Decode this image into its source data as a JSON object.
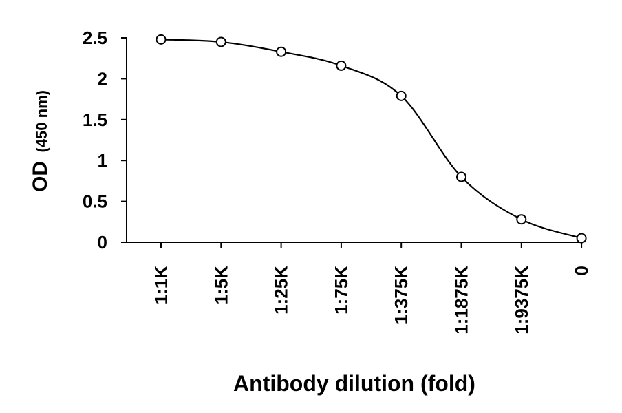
{
  "chart_data": {
    "type": "line",
    "title": "",
    "xlabel": "Antibody dilution (fold)",
    "ylabel_main": "OD",
    "ylabel_unit": "(450 nm)",
    "categories": [
      "1:1K",
      "1:5K",
      "1:25K",
      "1:75K",
      "1:375K",
      "1:1875K",
      "1:9375K",
      "0"
    ],
    "yticks": [
      "0",
      "0.5",
      "1",
      "1.5",
      "2",
      "2.5"
    ],
    "ylim": [
      0,
      2.5
    ],
    "grid": false,
    "legend": "none",
    "series": [
      {
        "values": [
          2.48,
          2.45,
          2.33,
          2.16,
          1.79,
          0.8,
          0.28,
          0.05
        ],
        "marker": "open-circle",
        "line": "smooth",
        "color": "#000000"
      }
    ]
  }
}
